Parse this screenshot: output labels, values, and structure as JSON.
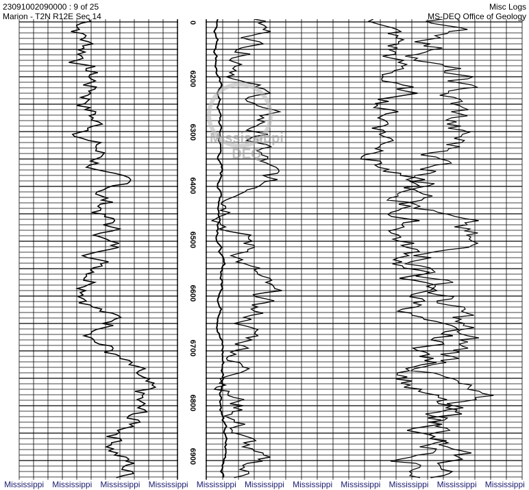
{
  "header": {
    "well_id": "23091002090000 : 9 of 25",
    "location": "Marion - T2N R12E Sec 14",
    "log_type": "Misc Logs",
    "agency": "MS-DEQ Office of Geology"
  },
  "depth_labels": [
    "0",
    "6200",
    "6300",
    "6400",
    "6500",
    "6600",
    "6700",
    "6800",
    "6900"
  ],
  "watermark": {
    "line1": "Mississippi",
    "line2": "DEQ"
  },
  "footer_watermarks": [
    "Mississippi",
    "Mississippi",
    "Mississippi",
    "Mississippi",
    "Mississippi",
    "Mississippi",
    "Mississippi",
    "Mississippi",
    "Mississippi",
    "Mississippi",
    "Mississippi"
  ]
}
